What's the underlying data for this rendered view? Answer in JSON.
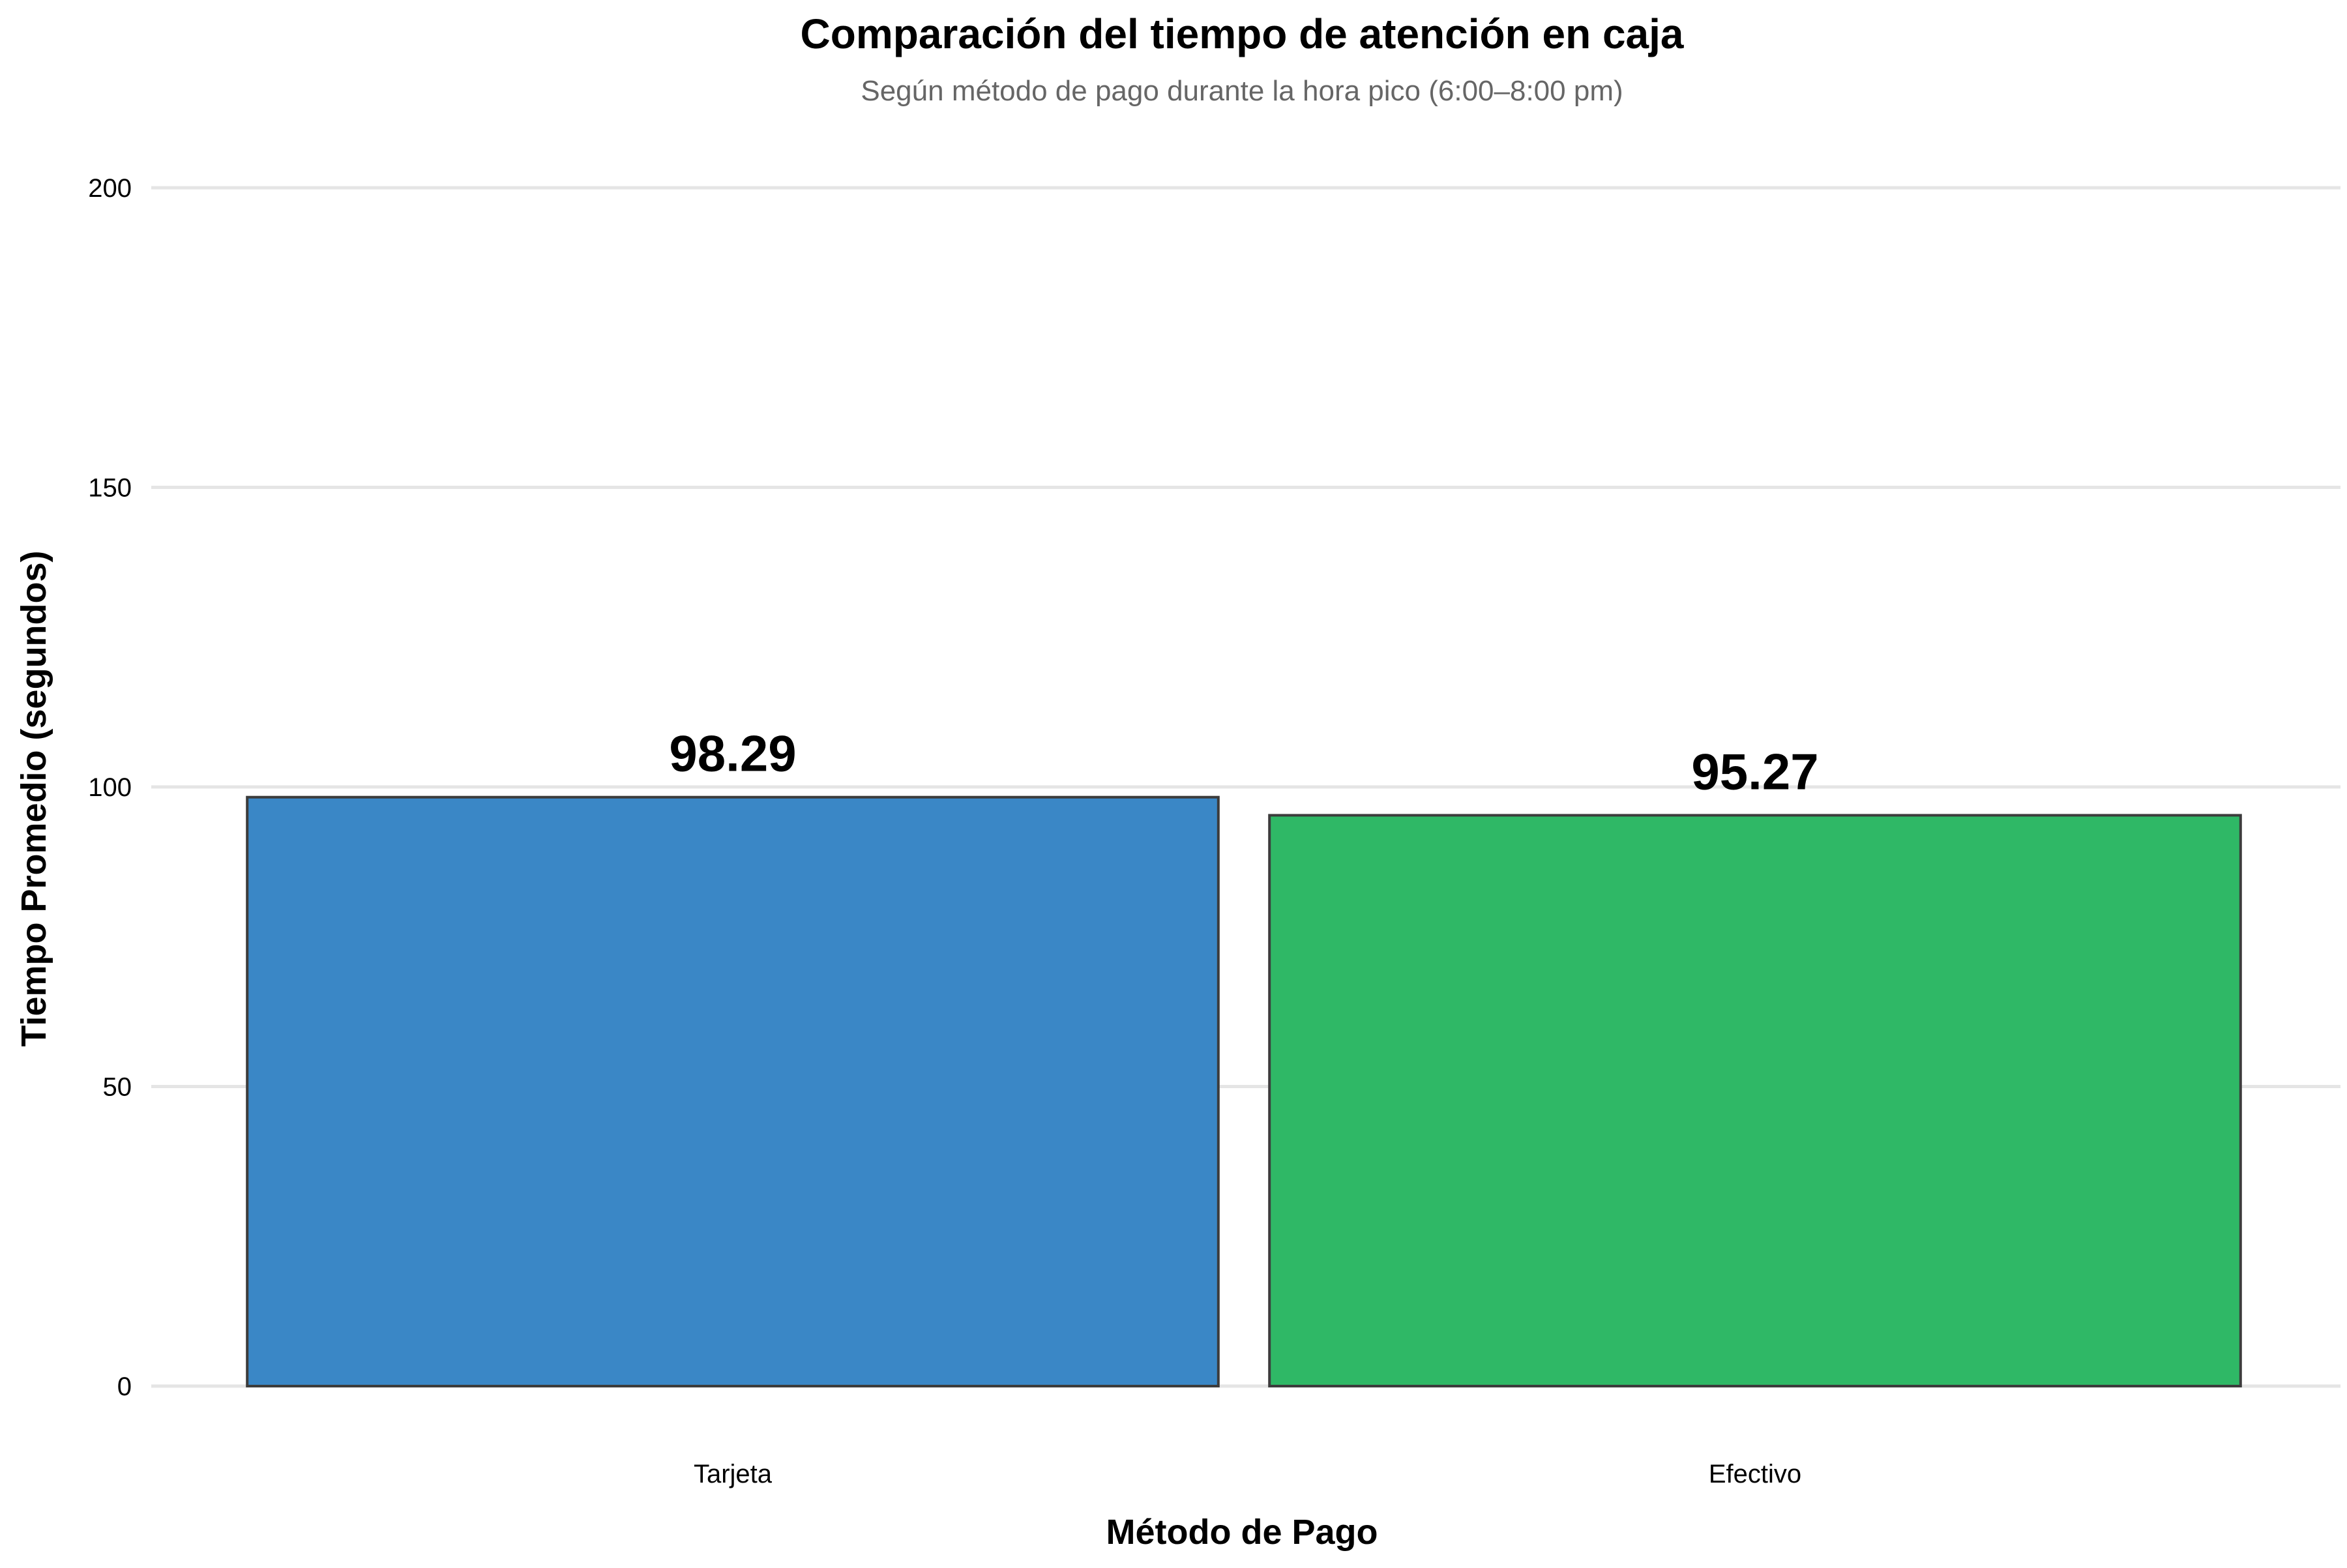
{
  "chart_data": {
    "type": "bar",
    "title": "Comparación del tiempo de atención en caja",
    "subtitle": "Según método de pago durante la hora pico (6:00–8:00 pm)",
    "xlabel": "Método de Pago",
    "ylabel": "Tiempo Promedio (segundos)",
    "categories": [
      "Tarjeta",
      "Efectivo"
    ],
    "values": [
      98.29,
      95.27
    ],
    "value_labels": [
      "98.29",
      "95.27"
    ],
    "colors": [
      "#3a87c6",
      "#2fb866"
    ],
    "bar_border_color": "#3c3c3c",
    "ylim": [
      0,
      200
    ],
    "yticks": [
      0,
      50,
      100,
      150,
      200
    ],
    "ytick_labels": [
      "0",
      "50",
      "100",
      "150",
      "200"
    ],
    "grid": true,
    "legend": "none"
  }
}
